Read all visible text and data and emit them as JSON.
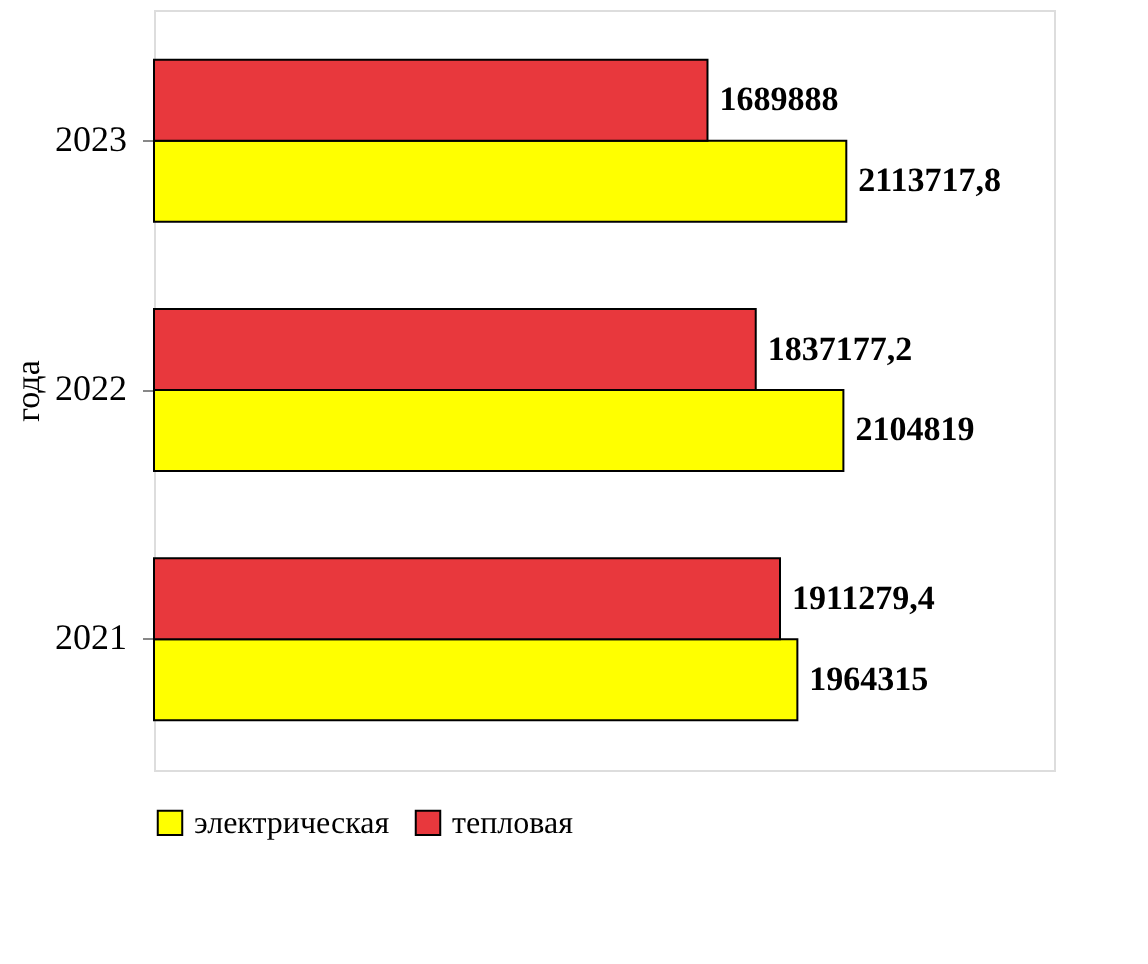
{
  "chart_data": {
    "type": "bar",
    "orientation": "horizontal",
    "ylabel": "года",
    "categories": [
      "2023",
      "2022",
      "2021"
    ],
    "series": [
      {
        "name": "электрическая",
        "color": "#ffff00",
        "values": [
          2113717.8,
          2104819,
          1964315
        ],
        "value_labels": [
          "2113717,8",
          "2104819",
          "1964315"
        ]
      },
      {
        "name": "тепловая",
        "color": "#e8383d",
        "values": [
          1689888,
          1837177.2,
          1911279.4
        ],
        "value_labels": [
          "1689888",
          "1837177,2",
          "1911279,4"
        ]
      }
    ],
    "legend": "bottom",
    "grid": false
  }
}
